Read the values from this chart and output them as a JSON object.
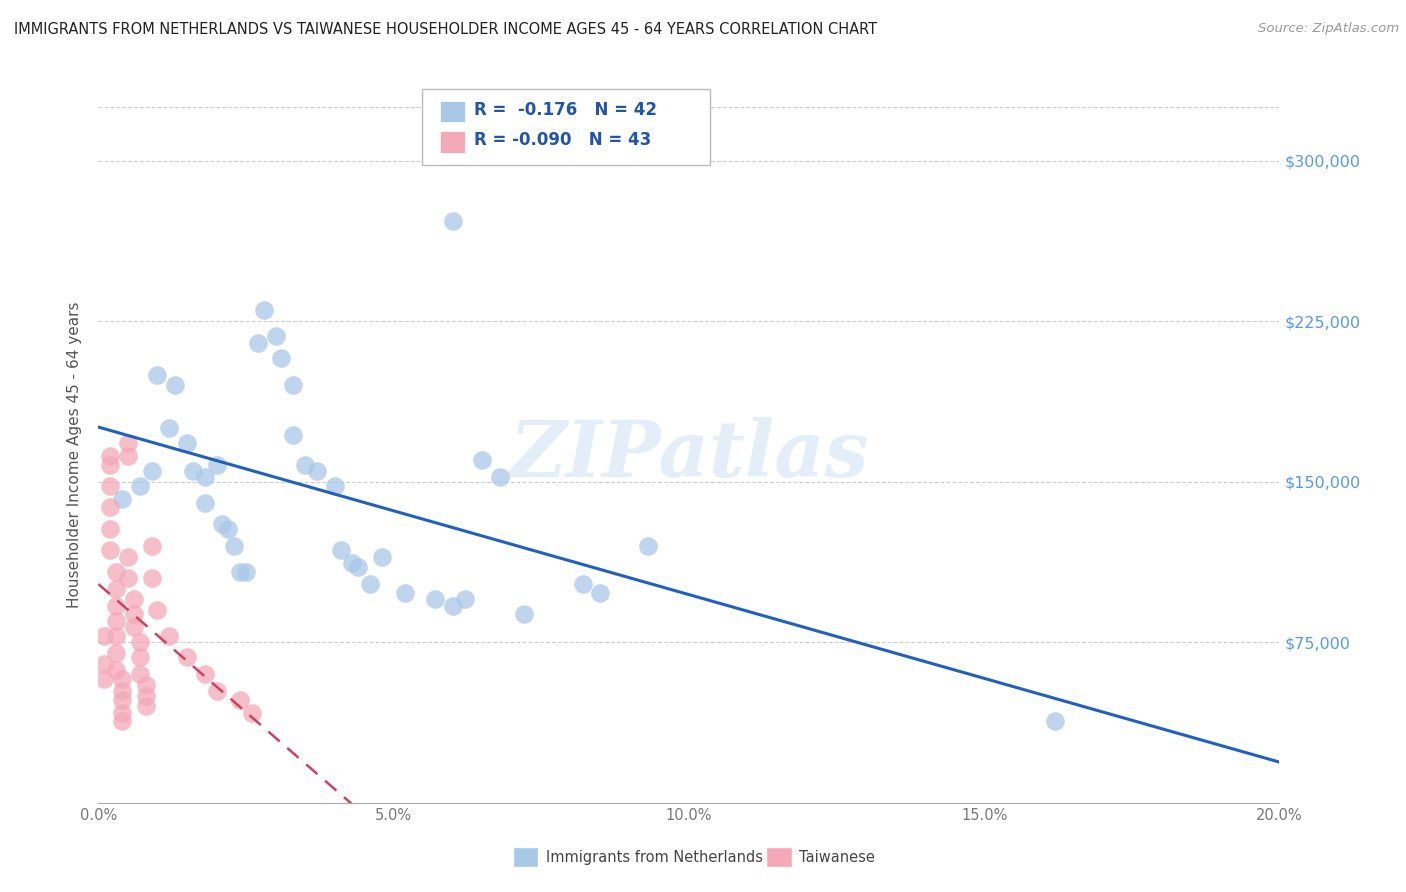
{
  "title": "IMMIGRANTS FROM NETHERLANDS VS TAIWANESE HOUSEHOLDER INCOME AGES 45 - 64 YEARS CORRELATION CHART",
  "source": "Source: ZipAtlas.com",
  "ylabel": "Householder Income Ages 45 - 64 years",
  "legend_label_blue": "Immigrants from Netherlands",
  "legend_label_pink": "Taiwanese",
  "legend_R_blue": "R =  -0.176",
  "legend_N_blue": "N = 42",
  "legend_R_pink": "R = -0.090",
  "legend_N_pink": "N = 43",
  "xlim": [
    0.0,
    0.2
  ],
  "ylim": [
    0,
    325000
  ],
  "ytick_labels": [
    "$75,000",
    "$150,000",
    "$225,000",
    "$300,000"
  ],
  "ytick_values": [
    75000,
    150000,
    225000,
    300000
  ],
  "xtick_labels": [
    "0.0%",
    "",
    "5.0%",
    "",
    "10.0%",
    "",
    "15.0%",
    "",
    "20.0%"
  ],
  "xtick_values": [
    0.0,
    0.025,
    0.05,
    0.075,
    0.1,
    0.125,
    0.15,
    0.175,
    0.2
  ],
  "blue_color": "#a8c8e8",
  "pink_color": "#f4a8b8",
  "blue_line_color": "#2060c0",
  "pink_line_color": "#d04060",
  "pink_line_dash": [
    6,
    4
  ],
  "watermark_text": "ZIPatlas",
  "blue_scatter": [
    [
      0.004,
      142000
    ],
    [
      0.007,
      148000
    ],
    [
      0.009,
      155000
    ],
    [
      0.01,
      200000
    ],
    [
      0.012,
      175000
    ],
    [
      0.013,
      195000
    ],
    [
      0.015,
      168000
    ],
    [
      0.016,
      155000
    ],
    [
      0.018,
      152000
    ],
    [
      0.018,
      140000
    ],
    [
      0.02,
      158000
    ],
    [
      0.021,
      130000
    ],
    [
      0.022,
      128000
    ],
    [
      0.023,
      120000
    ],
    [
      0.024,
      108000
    ],
    [
      0.025,
      108000
    ],
    [
      0.027,
      215000
    ],
    [
      0.028,
      230000
    ],
    [
      0.03,
      218000
    ],
    [
      0.031,
      208000
    ],
    [
      0.033,
      195000
    ],
    [
      0.033,
      172000
    ],
    [
      0.035,
      158000
    ],
    [
      0.037,
      155000
    ],
    [
      0.04,
      148000
    ],
    [
      0.041,
      118000
    ],
    [
      0.043,
      112000
    ],
    [
      0.044,
      110000
    ],
    [
      0.046,
      102000
    ],
    [
      0.048,
      115000
    ],
    [
      0.052,
      98000
    ],
    [
      0.057,
      95000
    ],
    [
      0.06,
      92000
    ],
    [
      0.062,
      95000
    ],
    [
      0.065,
      160000
    ],
    [
      0.06,
      272000
    ],
    [
      0.068,
      152000
    ],
    [
      0.072,
      88000
    ],
    [
      0.082,
      102000
    ],
    [
      0.085,
      98000
    ],
    [
      0.093,
      120000
    ],
    [
      0.162,
      38000
    ]
  ],
  "pink_scatter": [
    [
      0.001,
      78000
    ],
    [
      0.001,
      65000
    ],
    [
      0.001,
      58000
    ],
    [
      0.002,
      162000
    ],
    [
      0.002,
      158000
    ],
    [
      0.002,
      148000
    ],
    [
      0.002,
      138000
    ],
    [
      0.002,
      128000
    ],
    [
      0.002,
      118000
    ],
    [
      0.003,
      108000
    ],
    [
      0.003,
      100000
    ],
    [
      0.003,
      92000
    ],
    [
      0.003,
      85000
    ],
    [
      0.003,
      78000
    ],
    [
      0.003,
      70000
    ],
    [
      0.003,
      62000
    ],
    [
      0.004,
      58000
    ],
    [
      0.004,
      52000
    ],
    [
      0.004,
      48000
    ],
    [
      0.004,
      42000
    ],
    [
      0.004,
      38000
    ],
    [
      0.005,
      168000
    ],
    [
      0.005,
      162000
    ],
    [
      0.005,
      115000
    ],
    [
      0.005,
      105000
    ],
    [
      0.006,
      95000
    ],
    [
      0.006,
      88000
    ],
    [
      0.006,
      82000
    ],
    [
      0.007,
      75000
    ],
    [
      0.007,
      68000
    ],
    [
      0.007,
      60000
    ],
    [
      0.008,
      55000
    ],
    [
      0.008,
      50000
    ],
    [
      0.008,
      45000
    ],
    [
      0.009,
      120000
    ],
    [
      0.009,
      105000
    ],
    [
      0.01,
      90000
    ],
    [
      0.012,
      78000
    ],
    [
      0.015,
      68000
    ],
    [
      0.018,
      60000
    ],
    [
      0.02,
      52000
    ],
    [
      0.024,
      48000
    ],
    [
      0.026,
      42000
    ]
  ]
}
